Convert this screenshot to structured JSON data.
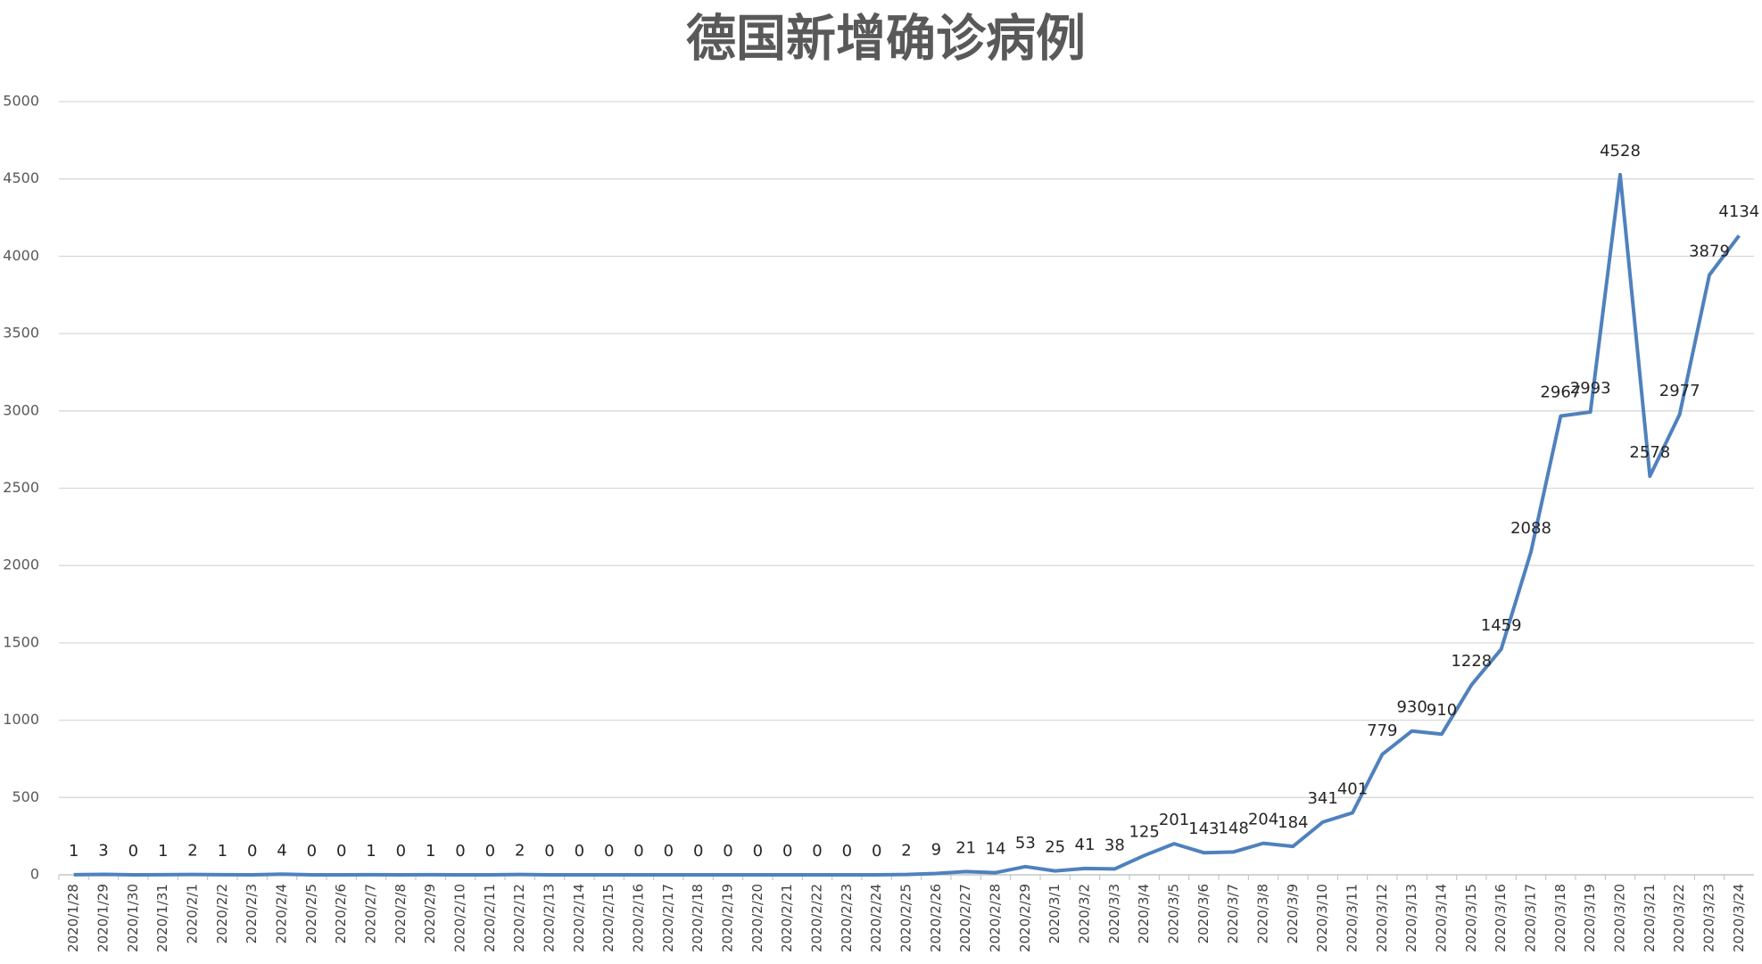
{
  "chart_data": {
    "type": "line",
    "title": "德国新增确诊病例",
    "categories": [
      "2020/1/28",
      "2020/1/29",
      "2020/1/30",
      "2020/1/31",
      "2020/2/1",
      "2020/2/2",
      "2020/2/3",
      "2020/2/4",
      "2020/2/5",
      "2020/2/6",
      "2020/2/7",
      "2020/2/8",
      "2020/2/9",
      "2020/2/10",
      "2020/2/11",
      "2020/2/12",
      "2020/2/13",
      "2020/2/14",
      "2020/2/15",
      "2020/2/16",
      "2020/2/17",
      "2020/2/18",
      "2020/2/19",
      "2020/2/20",
      "2020/2/21",
      "2020/2/22",
      "2020/2/23",
      "2020/2/24",
      "2020/2/25",
      "2020/2/26",
      "2020/2/27",
      "2020/2/28",
      "2020/2/29",
      "2020/3/1",
      "2020/3/2",
      "2020/3/3",
      "2020/3/4",
      "2020/3/5",
      "2020/3/6",
      "2020/3/7",
      "2020/3/8",
      "2020/3/9",
      "2020/3/10",
      "2020/3/11",
      "2020/3/12",
      "2020/3/13",
      "2020/3/14",
      "2020/3/15",
      "2020/3/16",
      "2020/3/17",
      "2020/3/18",
      "2020/3/19",
      "2020/3/20",
      "2020/3/21",
      "2020/3/22",
      "2020/3/23",
      "2020/3/24"
    ],
    "values": [
      1,
      3,
      0,
      1,
      2,
      1,
      0,
      4,
      0,
      0,
      1,
      0,
      1,
      0,
      0,
      2,
      0,
      0,
      0,
      0,
      0,
      0,
      0,
      0,
      0,
      0,
      0,
      0,
      2,
      9,
      21,
      14,
      53,
      25,
      41,
      38,
      125,
      201,
      143,
      148,
      204,
      184,
      341,
      401,
      779,
      930,
      910,
      1228,
      1459,
      2088,
      2967,
      2993,
      4528,
      2578,
      2977,
      3879,
      4134
    ],
    "color": "#4f81bd",
    "ylim": [
      0,
      5000
    ],
    "yticks": [
      0,
      500,
      1000,
      1500,
      2000,
      2500,
      3000,
      3500,
      4000,
      4500,
      5000
    ],
    "grid": true
  }
}
